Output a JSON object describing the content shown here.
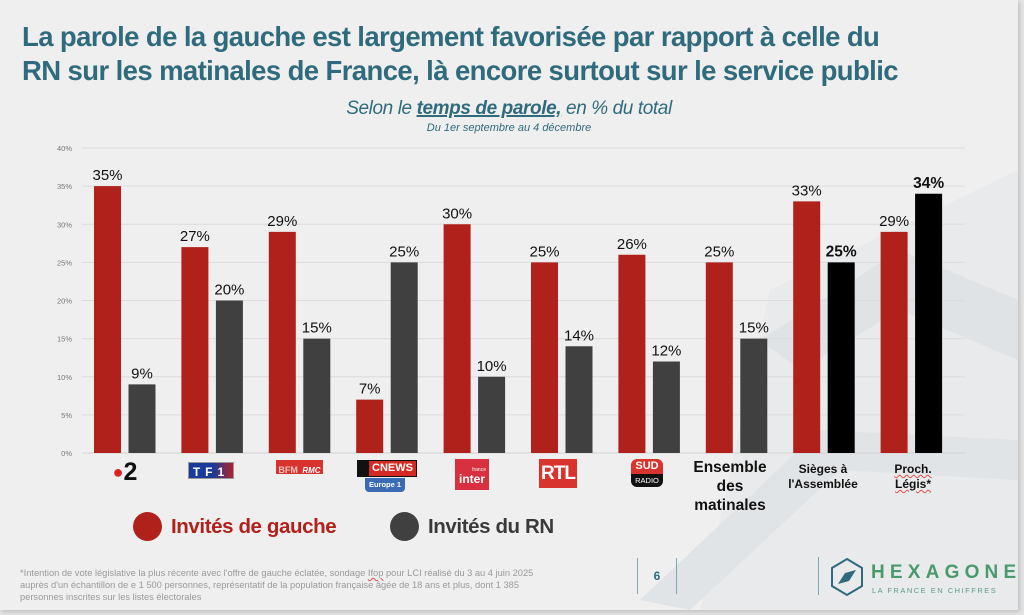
{
  "header": {
    "title_line1": "La parole de la gauche est largement favorisée par rapport à celle du",
    "title_line2": "RN sur les matinales de France, là encore surtout sur le service public",
    "subtitle_prefix": "Selon le ",
    "subtitle_emphasis": "temps de parole,",
    "subtitle_suffix": " en % du total",
    "date_range": "Du 1er septembre au 4 décembre"
  },
  "colors": {
    "left": "#b0211b",
    "rn": "#404040",
    "rn_highlight": "#000000",
    "title": "#2f6b7c",
    "grid": "#dcdcdc"
  },
  "chart_data": {
    "type": "bar",
    "title": "La parole de la gauche est largement favorisée par rapport à celle du RN sur les matinales de France, là encore surtout sur le service public",
    "subtitle": "Selon le temps de parole, en % du total — Du 1er septembre au 4 décembre",
    "xlabel": "",
    "ylabel": "",
    "ylim": [
      0,
      40
    ],
    "yticks": [
      0,
      5,
      10,
      15,
      20,
      25,
      30,
      35,
      40
    ],
    "ytick_labels": [
      "0%",
      "5%",
      "10%",
      "15%",
      "20%",
      "25%",
      "30%",
      "35%",
      "40%"
    ],
    "grid": true,
    "legend_position": "bottom-left",
    "categories": [
      "France 2",
      "TF1",
      "BFM / RMC",
      "CNews / Europe 1",
      "France Inter",
      "RTL",
      "Sud Radio",
      "Ensemble des matinales",
      "Sièges à l'Assemblée",
      "Proch. Législatives*"
    ],
    "series": [
      {
        "name": "Invités de gauche",
        "values": [
          35,
          27,
          29,
          7,
          30,
          25,
          26,
          25,
          33,
          29
        ]
      },
      {
        "name": "Invités du RN",
        "values": [
          9,
          20,
          15,
          25,
          10,
          14,
          12,
          15,
          25,
          34
        ],
        "highlighted_indices": [
          8,
          9
        ]
      }
    ],
    "data_labels": [
      [
        "35%",
        "27%",
        "29%",
        "7%",
        "30%",
        "25%",
        "26%",
        "25%",
        "33%",
        "29%"
      ],
      [
        "9%",
        "20%",
        "15%",
        "25%",
        "10%",
        "14%",
        "12%",
        "15%",
        "25%",
        "34%"
      ]
    ]
  },
  "category_labels": {
    "france2": "2",
    "tf1": "TF1",
    "bfm": "BFM",
    "rmc": "RMC",
    "cnews": "CNEWS",
    "europe1": "Europe 1",
    "inter_small": "france",
    "inter": "inter",
    "rtl": "RTL",
    "sud": "SUD",
    "radio": "RADIO",
    "ensemble": [
      "Ensemble",
      "des",
      "matinales"
    ],
    "sieges": [
      "Sièges à",
      "l'Assemblée"
    ],
    "legis": [
      "Proch.",
      "Légis*"
    ]
  },
  "legend": {
    "left_label": "Invités de gauche",
    "rn_label": "Invités du RN"
  },
  "footer": {
    "footnote_pre": "*Intention de vote législative la plus récente avec l'offre de gauche éclatée, sondage ",
    "footnote_ifop": "Ifop",
    "footnote_post": " pour LCI réalisé du 3 au 4 juin 2025 auprès d'un échantillon de e 1 500 personnes, représentatif de la population française âgée de 18 ans et plus, dont 1 385 personnes inscrites sur les listes électorales",
    "page_number": "6",
    "brand_name": "HEXAGONE",
    "brand_tagline": "LA FRANCE EN CHIFFRES"
  }
}
